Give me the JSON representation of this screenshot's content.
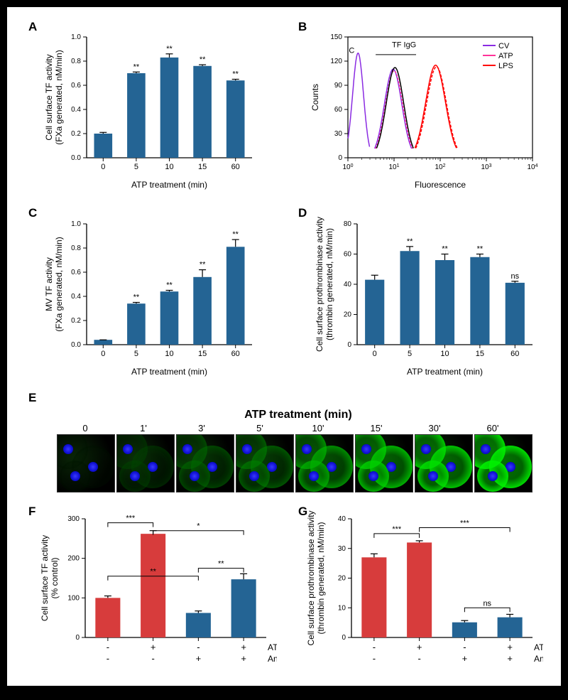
{
  "panel_labels": [
    "A",
    "B",
    "C",
    "D",
    "E",
    "F",
    "G"
  ],
  "A": {
    "type": "bar",
    "title": "",
    "xlabel": "ATP treatment (min)",
    "ylabel_line1": "Cell surface TF activity",
    "ylabel_line2": "(FXa generated, nM/min)",
    "categories": [
      "0",
      "5",
      "10",
      "15",
      "60"
    ],
    "values": [
      0.2,
      0.7,
      0.83,
      0.76,
      0.64
    ],
    "errors": [
      0.01,
      0.01,
      0.03,
      0.01,
      0.01
    ],
    "significance": [
      "",
      "**",
      "**",
      "**",
      "**"
    ],
    "bar_color": "#246494",
    "axis_color": "#000000",
    "background": "#ffffff",
    "ylim": [
      0,
      1.0
    ],
    "ytick_step": 0.2,
    "label_fontsize": 12,
    "tick_fontsize": 10,
    "bar_width": 0.6
  },
  "B": {
    "type": "flow-histogram",
    "xlabel": "Fluorescence",
    "ylabel": "Counts",
    "xlim_log": [
      1,
      10000
    ],
    "ylim": [
      0,
      150
    ],
    "ytick_step": 30,
    "legend": [
      "CV",
      "ATP",
      "LPS"
    ],
    "legend_colors": [
      "#8a2be2",
      "#ff3399",
      "#ff0000"
    ],
    "annotations": [
      "C",
      "TF IgG"
    ],
    "axis_color": "#000000",
    "label_fontsize": 12,
    "tick_fontsize": 10
  },
  "C": {
    "type": "bar",
    "xlabel": "ATP treatment (min)",
    "ylabel_line1": "MV TF activity",
    "ylabel_line2": "(FXa generated, nM/min)",
    "categories": [
      "0",
      "5",
      "10",
      "15",
      "60"
    ],
    "values": [
      0.04,
      0.34,
      0.44,
      0.56,
      0.81
    ],
    "errors": [
      0.0,
      0.01,
      0.01,
      0.06,
      0.06
    ],
    "significance": [
      "",
      "**",
      "**",
      "**",
      "**"
    ],
    "bar_color": "#246494",
    "axis_color": "#000000",
    "ylim": [
      0,
      1.0
    ],
    "ytick_step": 0.2,
    "label_fontsize": 12,
    "tick_fontsize": 10
  },
  "D": {
    "type": "bar",
    "xlabel": "ATP treatment (min)",
    "ylabel_line1": "Cell surface prothrombinase activity",
    "ylabel_line2": "(thrombin generated, nM/min)",
    "categories": [
      "0",
      "5",
      "10",
      "15",
      "60"
    ],
    "values": [
      43,
      62,
      56,
      58,
      41
    ],
    "errors": [
      3,
      3,
      4,
      2,
      1
    ],
    "significance": [
      "",
      "**",
      "**",
      "**",
      "ns"
    ],
    "bar_color": "#246494",
    "axis_color": "#000000",
    "ylim": [
      0,
      80
    ],
    "ytick_step": 20,
    "label_fontsize": 12,
    "tick_fontsize": 10
  },
  "E": {
    "type": "microscopy-row",
    "title": "ATP treatment (min)",
    "timepoints": [
      "0",
      "1'",
      "3'",
      "5'",
      "10'",
      "15'",
      "30'",
      "60'"
    ],
    "intens": [
      0.08,
      0.28,
      0.42,
      0.5,
      0.7,
      0.82,
      0.88,
      0.95
    ],
    "cell_color_base": "#00ff00",
    "nucleus_color": "#1010ff",
    "background": "#000000",
    "label_fontsize": 13
  },
  "F": {
    "type": "bar-grouped",
    "ylabel_line1": "Cell surface TF activity",
    "ylabel_line2": "(% control)",
    "groups": [
      "-/-",
      "+/-",
      "-/+",
      "+/+"
    ],
    "values": [
      100,
      262,
      62,
      147
    ],
    "errors": [
      5,
      8,
      5,
      14
    ],
    "bar_colors": [
      "#d73c3c",
      "#d73c3c",
      "#246494",
      "#246494"
    ],
    "axis_color": "#000000",
    "ylim": [
      0,
      300
    ],
    "ytick_step": 100,
    "label_fontsize": 12,
    "tick_fontsize": 10,
    "sig_brackets": [
      {
        "from": 0,
        "to": 1,
        "y": 290,
        "label": "***"
      },
      {
        "from": 0,
        "to": 2,
        "y": 155,
        "label": "**"
      },
      {
        "from": 1,
        "to": 3,
        "y": 270,
        "label": "*"
      },
      {
        "from": 2,
        "to": 3,
        "y": 175,
        "label": "**"
      }
    ],
    "treatments": {
      "ATP": [
        "-",
        "+",
        "-",
        "+"
      ],
      "Annexin V": [
        "-",
        "-",
        "+",
        "+"
      ]
    }
  },
  "G": {
    "type": "bar-grouped",
    "ylabel_line1": "Cell surface prothrombinase activity",
    "ylabel_line2": "(thrombin generated, nM/min)",
    "groups": [
      "-/-",
      "+/-",
      "-/+",
      "+/+"
    ],
    "values": [
      27,
      32,
      5.1,
      6.8
    ],
    "errors": [
      1.2,
      0.6,
      0.6,
      1.0
    ],
    "bar_colors": [
      "#d73c3c",
      "#d73c3c",
      "#246494",
      "#246494"
    ],
    "axis_color": "#000000",
    "ylim": [
      0,
      40
    ],
    "ytick_step": 10,
    "label_fontsize": 12,
    "tick_fontsize": 10,
    "sig_brackets": [
      {
        "from": 0,
        "to": 1,
        "y": 35,
        "label": "***"
      },
      {
        "from": 1,
        "to": 3,
        "y": 37,
        "label": "***"
      },
      {
        "from": 2,
        "to": 3,
        "y": 10,
        "label": "ns"
      }
    ],
    "treatments": {
      "ATP": [
        "-",
        "+",
        "-",
        "+"
      ],
      "Annexin V": [
        "-",
        "-",
        "+",
        "+"
      ]
    }
  }
}
